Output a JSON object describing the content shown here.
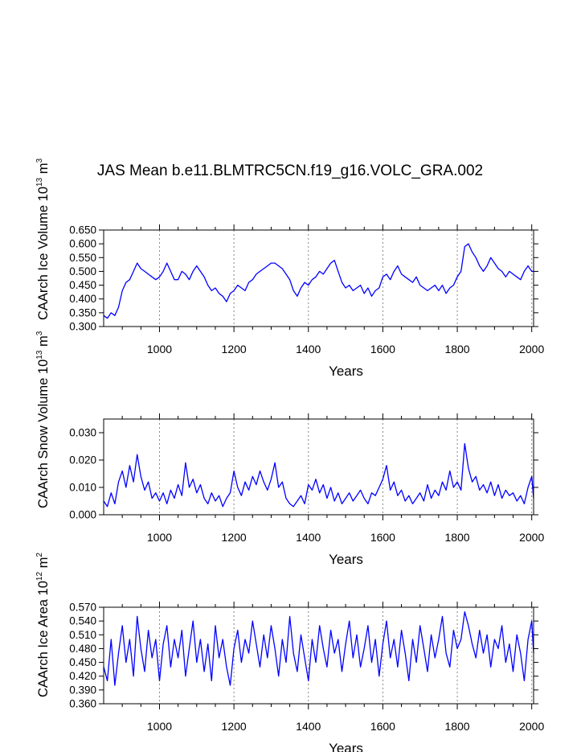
{
  "figure": {
    "title": "JAS Mean b.e11.BLMTRC5CN.f19_g16.VOLC_GRA.002"
  },
  "chart_data": [
    {
      "id": "ice-volume",
      "type": "line",
      "ylabel_main": "CAArch Ice Volume 10",
      "ylabel_exp": "13",
      "ylabel_unit": " m",
      "ylabel_unit_exp": "3",
      "xlabel": "Years",
      "xlim": [
        850,
        2005
      ],
      "ylim": [
        0.3,
        0.65
      ],
      "xticks": [
        1000,
        1200,
        1400,
        1600,
        1800,
        2000
      ],
      "xtick_labels": [
        "1000",
        "1200",
        "1400",
        "1600",
        "1800",
        "2000"
      ],
      "yticks": [
        0.3,
        0.35,
        0.4,
        0.45,
        0.5,
        0.55,
        0.6,
        0.65
      ],
      "ytick_labels": [
        "0.300",
        "0.350",
        "0.400",
        "0.450",
        "0.500",
        "0.550",
        "0.600",
        "0.650"
      ],
      "grid_x": "dotted",
      "series": [
        {
          "name": "CAArch Ice Volume",
          "color": "#0000ff",
          "x": [
            850,
            860,
            870,
            880,
            890,
            900,
            910,
            920,
            930,
            940,
            950,
            960,
            970,
            980,
            990,
            1000,
            1010,
            1020,
            1030,
            1040,
            1050,
            1060,
            1070,
            1080,
            1090,
            1100,
            1110,
            1120,
            1130,
            1140,
            1150,
            1160,
            1170,
            1180,
            1190,
            1200,
            1210,
            1220,
            1230,
            1240,
            1250,
            1260,
            1270,
            1280,
            1290,
            1300,
            1310,
            1320,
            1330,
            1340,
            1350,
            1360,
            1370,
            1380,
            1390,
            1400,
            1410,
            1420,
            1430,
            1440,
            1450,
            1460,
            1470,
            1480,
            1490,
            1500,
            1510,
            1520,
            1530,
            1540,
            1550,
            1560,
            1570,
            1580,
            1590,
            1600,
            1610,
            1620,
            1630,
            1640,
            1650,
            1660,
            1670,
            1680,
            1690,
            1700,
            1710,
            1720,
            1730,
            1740,
            1750,
            1760,
            1770,
            1780,
            1790,
            1800,
            1810,
            1820,
            1830,
            1840,
            1850,
            1860,
            1870,
            1880,
            1890,
            1900,
            1910,
            1920,
            1930,
            1940,
            1950,
            1960,
            1970,
            1980,
            1990,
            2000,
            2005
          ],
          "values": [
            0.34,
            0.33,
            0.35,
            0.34,
            0.37,
            0.43,
            0.46,
            0.47,
            0.5,
            0.53,
            0.51,
            0.5,
            0.49,
            0.48,
            0.47,
            0.48,
            0.5,
            0.53,
            0.5,
            0.47,
            0.47,
            0.5,
            0.49,
            0.47,
            0.5,
            0.52,
            0.5,
            0.48,
            0.45,
            0.43,
            0.44,
            0.42,
            0.41,
            0.39,
            0.42,
            0.43,
            0.45,
            0.44,
            0.43,
            0.46,
            0.47,
            0.49,
            0.5,
            0.51,
            0.52,
            0.53,
            0.53,
            0.52,
            0.51,
            0.49,
            0.47,
            0.43,
            0.41,
            0.44,
            0.46,
            0.45,
            0.47,
            0.48,
            0.5,
            0.49,
            0.51,
            0.53,
            0.54,
            0.5,
            0.46,
            0.44,
            0.45,
            0.43,
            0.44,
            0.45,
            0.42,
            0.44,
            0.41,
            0.43,
            0.44,
            0.48,
            0.49,
            0.47,
            0.5,
            0.52,
            0.49,
            0.48,
            0.47,
            0.46,
            0.48,
            0.45,
            0.44,
            0.43,
            0.44,
            0.45,
            0.43,
            0.45,
            0.42,
            0.44,
            0.45,
            0.48,
            0.5,
            0.59,
            0.6,
            0.57,
            0.55,
            0.52,
            0.5,
            0.52,
            0.55,
            0.53,
            0.51,
            0.5,
            0.48,
            0.5,
            0.49,
            0.48,
            0.47,
            0.5,
            0.52,
            0.5,
            0.5
          ]
        }
      ]
    },
    {
      "id": "snow-volume",
      "type": "line",
      "ylabel_main": "CAArch Snow Volume 10",
      "ylabel_exp": "13",
      "ylabel_unit": " m",
      "ylabel_unit_exp": "3",
      "xlabel": "Years",
      "xlim": [
        850,
        2005
      ],
      "ylim": [
        0.0,
        0.035
      ],
      "xticks": [
        1000,
        1200,
        1400,
        1600,
        1800,
        2000
      ],
      "xtick_labels": [
        "1000",
        "1200",
        "1400",
        "1600",
        "1800",
        "2000"
      ],
      "yticks": [
        0.0,
        0.01,
        0.02,
        0.03
      ],
      "ytick_labels": [
        "0.000",
        "0.010",
        "0.020",
        "0.030"
      ],
      "grid_x": "dotted",
      "series": [
        {
          "name": "CAArch Snow Volume",
          "color": "#0000ff",
          "x": [
            850,
            860,
            870,
            880,
            890,
            900,
            910,
            920,
            930,
            940,
            950,
            960,
            970,
            980,
            990,
            1000,
            1010,
            1020,
            1030,
            1040,
            1050,
            1060,
            1070,
            1080,
            1090,
            1100,
            1110,
            1120,
            1130,
            1140,
            1150,
            1160,
            1170,
            1180,
            1190,
            1200,
            1210,
            1220,
            1230,
            1240,
            1250,
            1260,
            1270,
            1280,
            1290,
            1300,
            1310,
            1320,
            1330,
            1340,
            1350,
            1360,
            1370,
            1380,
            1390,
            1400,
            1410,
            1420,
            1430,
            1440,
            1450,
            1460,
            1470,
            1480,
            1490,
            1500,
            1510,
            1520,
            1530,
            1540,
            1550,
            1560,
            1570,
            1580,
            1590,
            1600,
            1610,
            1620,
            1630,
            1640,
            1650,
            1660,
            1670,
            1680,
            1690,
            1700,
            1710,
            1720,
            1730,
            1740,
            1750,
            1760,
            1770,
            1780,
            1790,
            1800,
            1810,
            1820,
            1830,
            1840,
            1850,
            1860,
            1870,
            1880,
            1890,
            1900,
            1910,
            1920,
            1930,
            1940,
            1950,
            1960,
            1970,
            1980,
            1990,
            2000,
            2005
          ],
          "values": [
            0.005,
            0.003,
            0.008,
            0.004,
            0.012,
            0.016,
            0.01,
            0.018,
            0.012,
            0.022,
            0.014,
            0.009,
            0.012,
            0.006,
            0.008,
            0.005,
            0.008,
            0.004,
            0.009,
            0.006,
            0.011,
            0.007,
            0.019,
            0.01,
            0.013,
            0.008,
            0.011,
            0.006,
            0.004,
            0.008,
            0.005,
            0.007,
            0.003,
            0.006,
            0.008,
            0.016,
            0.01,
            0.007,
            0.012,
            0.009,
            0.014,
            0.011,
            0.016,
            0.012,
            0.009,
            0.013,
            0.019,
            0.01,
            0.012,
            0.006,
            0.004,
            0.003,
            0.005,
            0.007,
            0.004,
            0.011,
            0.009,
            0.013,
            0.008,
            0.011,
            0.006,
            0.01,
            0.005,
            0.008,
            0.004,
            0.006,
            0.008,
            0.005,
            0.007,
            0.009,
            0.006,
            0.004,
            0.008,
            0.007,
            0.01,
            0.013,
            0.018,
            0.009,
            0.012,
            0.007,
            0.009,
            0.005,
            0.007,
            0.004,
            0.006,
            0.008,
            0.005,
            0.011,
            0.006,
            0.009,
            0.007,
            0.012,
            0.009,
            0.016,
            0.01,
            0.012,
            0.009,
            0.026,
            0.017,
            0.012,
            0.014,
            0.009,
            0.011,
            0.008,
            0.012,
            0.007,
            0.011,
            0.006,
            0.009,
            0.007,
            0.008,
            0.005,
            0.007,
            0.004,
            0.01,
            0.014,
            0.006
          ]
        }
      ]
    },
    {
      "id": "ice-area",
      "type": "line",
      "ylabel_main": "CAArch Ice Area 10",
      "ylabel_exp": "12",
      "ylabel_unit": " m",
      "ylabel_unit_exp": "2",
      "xlabel": "Years",
      "xlim": [
        850,
        2005
      ],
      "ylim": [
        0.36,
        0.57
      ],
      "xticks": [
        1000,
        1200,
        1400,
        1600,
        1800,
        2000
      ],
      "xtick_labels": [
        "1000",
        "1200",
        "1400",
        "1600",
        "1800",
        "2000"
      ],
      "yticks": [
        0.36,
        0.39,
        0.42,
        0.45,
        0.48,
        0.51,
        0.54,
        0.57
      ],
      "ytick_labels": [
        "0.360",
        "0.390",
        "0.420",
        "0.450",
        "0.480",
        "0.510",
        "0.540",
        "0.570"
      ],
      "grid_x": "dotted",
      "series": [
        {
          "name": "CAArch Ice Area",
          "color": "#0000ff",
          "x": [
            850,
            860,
            870,
            880,
            890,
            900,
            910,
            920,
            930,
            940,
            950,
            960,
            970,
            980,
            990,
            1000,
            1010,
            1020,
            1030,
            1040,
            1050,
            1060,
            1070,
            1080,
            1090,
            1100,
            1110,
            1120,
            1130,
            1140,
            1150,
            1160,
            1170,
            1180,
            1190,
            1200,
            1210,
            1220,
            1230,
            1240,
            1250,
            1260,
            1270,
            1280,
            1290,
            1300,
            1310,
            1320,
            1330,
            1340,
            1350,
            1360,
            1370,
            1380,
            1390,
            1400,
            1410,
            1420,
            1430,
            1440,
            1450,
            1460,
            1470,
            1480,
            1490,
            1500,
            1510,
            1520,
            1530,
            1540,
            1550,
            1560,
            1570,
            1580,
            1590,
            1600,
            1610,
            1620,
            1630,
            1640,
            1650,
            1660,
            1670,
            1680,
            1690,
            1700,
            1710,
            1720,
            1730,
            1740,
            1750,
            1760,
            1770,
            1780,
            1790,
            1800,
            1810,
            1820,
            1830,
            1840,
            1850,
            1860,
            1870,
            1880,
            1890,
            1900,
            1910,
            1920,
            1930,
            1940,
            1950,
            1960,
            1970,
            1980,
            1990,
            2000,
            2005
          ],
          "values": [
            0.44,
            0.41,
            0.5,
            0.4,
            0.47,
            0.53,
            0.45,
            0.5,
            0.42,
            0.55,
            0.48,
            0.43,
            0.52,
            0.46,
            0.5,
            0.41,
            0.49,
            0.53,
            0.44,
            0.5,
            0.46,
            0.52,
            0.42,
            0.48,
            0.54,
            0.45,
            0.5,
            0.43,
            0.49,
            0.41,
            0.53,
            0.46,
            0.5,
            0.44,
            0.4,
            0.48,
            0.52,
            0.45,
            0.5,
            0.47,
            0.54,
            0.49,
            0.44,
            0.51,
            0.46,
            0.53,
            0.48,
            0.42,
            0.5,
            0.45,
            0.55,
            0.47,
            0.43,
            0.51,
            0.46,
            0.41,
            0.5,
            0.45,
            0.53,
            0.48,
            0.44,
            0.52,
            0.47,
            0.5,
            0.43,
            0.49,
            0.54,
            0.46,
            0.51,
            0.44,
            0.48,
            0.53,
            0.45,
            0.5,
            0.42,
            0.49,
            0.54,
            0.46,
            0.5,
            0.44,
            0.52,
            0.47,
            0.41,
            0.5,
            0.45,
            0.53,
            0.48,
            0.43,
            0.51,
            0.46,
            0.5,
            0.55,
            0.47,
            0.44,
            0.52,
            0.48,
            0.5,
            0.56,
            0.53,
            0.49,
            0.46,
            0.52,
            0.47,
            0.51,
            0.44,
            0.5,
            0.48,
            0.53,
            0.45,
            0.49,
            0.43,
            0.51,
            0.47,
            0.41,
            0.5,
            0.54,
            0.47
          ]
        }
      ]
    }
  ]
}
